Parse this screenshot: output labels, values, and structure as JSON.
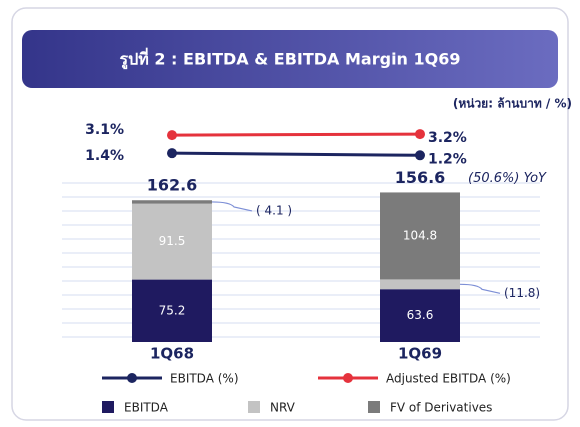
{
  "chart_data": {
    "type": "stacked-bar-line",
    "title": "รูปที่ 2 : EBITDA & EBITDA Margin 1Q69",
    "unit_label": "(หน่วย: ล้านบาท / %)",
    "categories": [
      "1Q68",
      "1Q69"
    ],
    "series": [
      {
        "name": "EBITDA",
        "color": "#1f1a60",
        "values": [
          75.2,
          63.6
        ],
        "value_labels": [
          "75.2",
          "63.6"
        ]
      },
      {
        "name": "NRV",
        "color": "#c3c3c3",
        "values": [
          91.5,
          -11.8
        ],
        "value_labels": [
          "91.5",
          "(11.8)"
        ]
      },
      {
        "name": "FV of Derivatives",
        "color": "#7b7b7b",
        "values": [
          -4.1,
          104.8
        ],
        "value_labels": [
          "( 4.1 )",
          "104.8"
        ]
      }
    ],
    "totals": [
      162.6,
      156.6
    ],
    "total_labels": [
      "162.6",
      "156.6"
    ],
    "yoy_annotation": "(50.6%) YoY",
    "lines": [
      {
        "name": "EBITDA (%)",
        "color": "#1c2560",
        "values": [
          1.4,
          1.2
        ],
        "value_labels": [
          "1.4%",
          "1.2%"
        ]
      },
      {
        "name": "Adjusted EBITDA (%)",
        "color": "#e5323c",
        "values": [
          3.1,
          3.2
        ],
        "value_labels": [
          "3.1%",
          "3.2%"
        ]
      }
    ]
  }
}
